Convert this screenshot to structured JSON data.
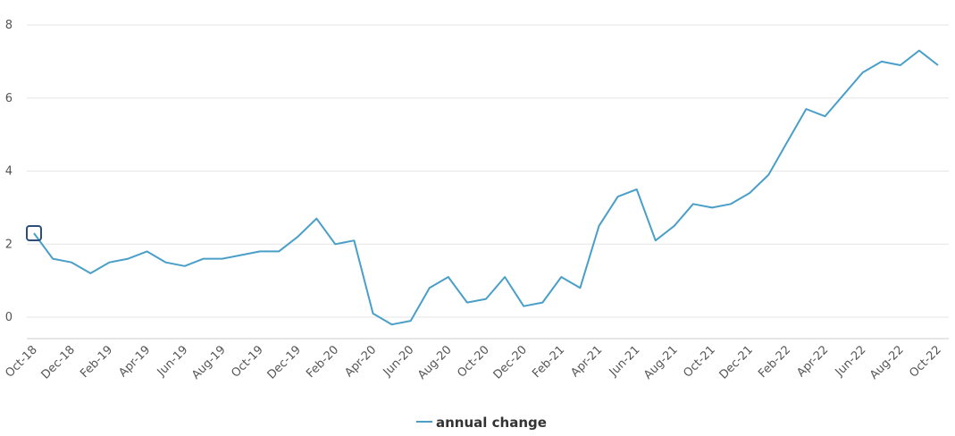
{
  "chart_data": {
    "type": "line",
    "x": [
      "Oct-18",
      "Nov-18",
      "Dec-18",
      "Jan-19",
      "Feb-19",
      "Mar-19",
      "Apr-19",
      "May-19",
      "Jun-19",
      "Jul-19",
      "Aug-19",
      "Sep-19",
      "Oct-19",
      "Nov-19",
      "Dec-19",
      "Jan-20",
      "Feb-20",
      "Mar-20",
      "Apr-20",
      "May-20",
      "Jun-20",
      "Jul-20",
      "Aug-20",
      "Sep-20",
      "Oct-20",
      "Nov-20",
      "Dec-20",
      "Jan-21",
      "Feb-21",
      "Mar-21",
      "Apr-21",
      "May-21",
      "Jun-21",
      "Jul-21",
      "Aug-21",
      "Sep-21",
      "Oct-21",
      "Nov-21",
      "Dec-21",
      "Jan-22",
      "Feb-22",
      "Mar-22",
      "Apr-22",
      "May-22",
      "Jun-22",
      "Jul-22",
      "Aug-22",
      "Sep-22",
      "Oct-22"
    ],
    "x_tick_labels": [
      "Oct-18",
      "Dec-18",
      "Feb-19",
      "Apr-19",
      "Jun-19",
      "Aug-19",
      "Oct-19",
      "Dec-19",
      "Feb-20",
      "Apr-20",
      "Jun-20",
      "Aug-20",
      "Oct-20",
      "Dec-20",
      "Feb-21",
      "Apr-21",
      "Jun-21",
      "Aug-21",
      "Oct-21",
      "Dec-21",
      "Feb-22",
      "Apr-22",
      "Jun-22",
      "Aug-22",
      "Oct-22"
    ],
    "series": [
      {
        "name": "annual change",
        "color": "#4a9fc8",
        "values": [
          2.3,
          1.6,
          1.5,
          1.2,
          1.5,
          1.6,
          1.8,
          1.5,
          1.4,
          1.6,
          1.6,
          1.7,
          1.8,
          1.8,
          2.2,
          2.7,
          2.0,
          2.1,
          0.1,
          -0.2,
          -0.1,
          0.8,
          1.1,
          0.4,
          0.5,
          1.1,
          0.3,
          0.4,
          1.1,
          0.8,
          2.5,
          3.3,
          3.5,
          2.1,
          2.5,
          3.1,
          3.0,
          3.1,
          3.4,
          3.9,
          4.8,
          5.7,
          5.5,
          6.1,
          6.7,
          7.0,
          6.9,
          7.3,
          6.9
        ]
      }
    ],
    "y_ticks": [
      0,
      2,
      4,
      6,
      8
    ],
    "ylim": [
      -0.6,
      8
    ],
    "grid": true,
    "legend_position": "bottom-center",
    "highlight_marker_index": 0
  }
}
